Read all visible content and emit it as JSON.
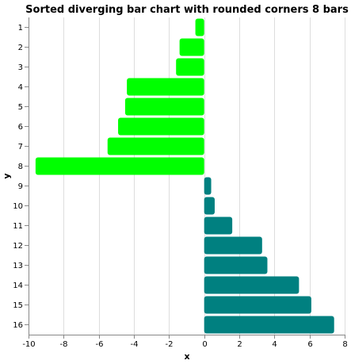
{
  "chart_data": {
    "type": "bar",
    "orientation": "horizontal",
    "title": "Sorted diverging bar chart with rounded corners 8 bars",
    "xlabel": "x",
    "ylabel": "y",
    "xlim": [
      -10,
      8
    ],
    "x_ticks": [
      -10,
      -8,
      -6,
      -4,
      -2,
      0,
      2,
      4,
      6,
      8
    ],
    "grid": true,
    "categories": [
      "1",
      "2",
      "3",
      "4",
      "5",
      "6",
      "7",
      "8",
      "9",
      "10",
      "11",
      "12",
      "13",
      "14",
      "15",
      "16"
    ],
    "values": [
      -0.5,
      -1.4,
      -1.6,
      -4.4,
      -4.5,
      -4.9,
      -5.5,
      -9.6,
      0.4,
      0.6,
      1.6,
      3.3,
      3.6,
      5.4,
      6.1,
      7.4
    ],
    "colors": {
      "negative": "#00ff00",
      "positive": "#008080"
    }
  }
}
